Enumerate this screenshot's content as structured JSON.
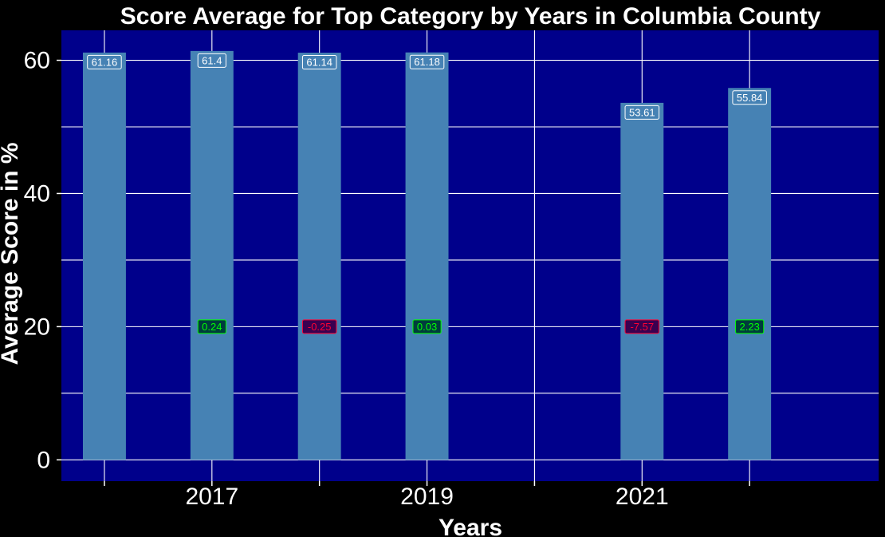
{
  "chart_data": {
    "type": "bar",
    "title": "Score Average for Top Category by Years in Columbia County",
    "xlabel": "Years",
    "ylabel": "Average Score in %",
    "x": [
      2016,
      2017,
      2018,
      2019,
      2021,
      2022
    ],
    "values": [
      61.16,
      61.4,
      61.14,
      61.18,
      53.61,
      55.84
    ],
    "value_labels": [
      "61.16",
      "61.4",
      "61.14",
      "61.18",
      "53.61",
      "55.84"
    ],
    "changes": [
      {
        "x": 2017,
        "label": "0.24",
        "direction": "up"
      },
      {
        "x": 2018,
        "label": "-0.25",
        "direction": "down"
      },
      {
        "x": 2019,
        "label": "0.03",
        "direction": "up"
      },
      {
        "x": 2021,
        "label": "-7.57",
        "direction": "down"
      },
      {
        "x": 2022,
        "label": "2.23",
        "direction": "up"
      }
    ],
    "change_label_y": 20,
    "xlim": [
      2015.6,
      2023.2
    ],
    "ylim": [
      -3.2,
      64.5
    ],
    "x_ticks": [
      2016,
      2017,
      2018,
      2019,
      2020,
      2021,
      2022
    ],
    "x_tick_labels": [
      {
        "value": 2017,
        "label": "2017"
      },
      {
        "value": 2019,
        "label": "2019"
      },
      {
        "value": 2021,
        "label": "2021"
      }
    ],
    "y_ticks": [
      0,
      20,
      40,
      60
    ],
    "y_minor_gridlines": [
      10,
      30,
      50
    ],
    "grid": true,
    "legend": "none",
    "colors": {
      "page_background": "#000000",
      "plot_background": "#00008B",
      "bar": "#4682B4",
      "grid": "#FFFFFF",
      "text": "#FFFFFF",
      "value_label_border": "#FFFFFF",
      "change_up_background": "#003C3C",
      "change_up_text": "#00FF00",
      "change_down_background": "#3A0050",
      "change_down_text": "#FF0033"
    }
  }
}
